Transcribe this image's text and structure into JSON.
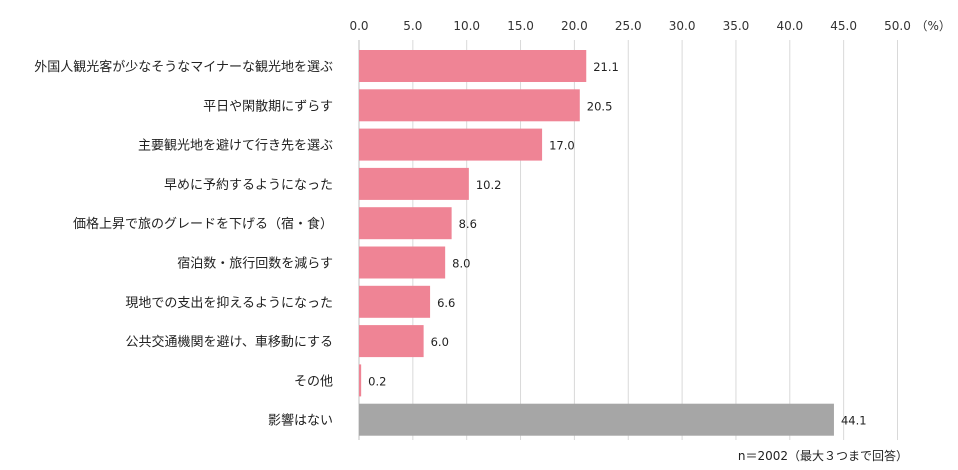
{
  "chart_data": {
    "type": "bar",
    "orientation": "horizontal",
    "categories": [
      "外国人観光客が少なそうなマイナーな観光地を選ぶ",
      "平日や閑散期にずらす",
      "主要観光地を避けて行き先を選ぶ",
      "早めに予約するようになった",
      "価格上昇で旅のグレードを下げる（宿・食）",
      "宿泊数・旅行回数を減らす",
      "現地での支出を抑えるようになった",
      "公共交通機関を避け、車移動にする",
      "その他",
      "影響はない"
    ],
    "values": [
      21.1,
      20.5,
      17.0,
      10.2,
      8.6,
      8.0,
      6.6,
      6.0,
      0.2,
      44.1
    ],
    "value_labels": [
      "21.1",
      "20.5",
      "17.0",
      "10.2",
      "8.6",
      "8.0",
      "6.6",
      "6.0",
      "0.2",
      "44.1"
    ],
    "xlim": [
      0,
      50
    ],
    "x_ticks": [
      "0.0",
      "5.0",
      "10.0",
      "15.0",
      "20.0",
      "25.0",
      "30.0",
      "35.0",
      "40.0",
      "45.0",
      "50.0"
    ],
    "x_unit": "（%）",
    "axis_position": "top",
    "grid": true,
    "colors": {
      "default": "#ef8495",
      "highlight": "#a6a6a6",
      "grid": "#d9d9d9"
    },
    "highlight_index": 9
  },
  "note": "n＝2002（最大３つまで回答）"
}
